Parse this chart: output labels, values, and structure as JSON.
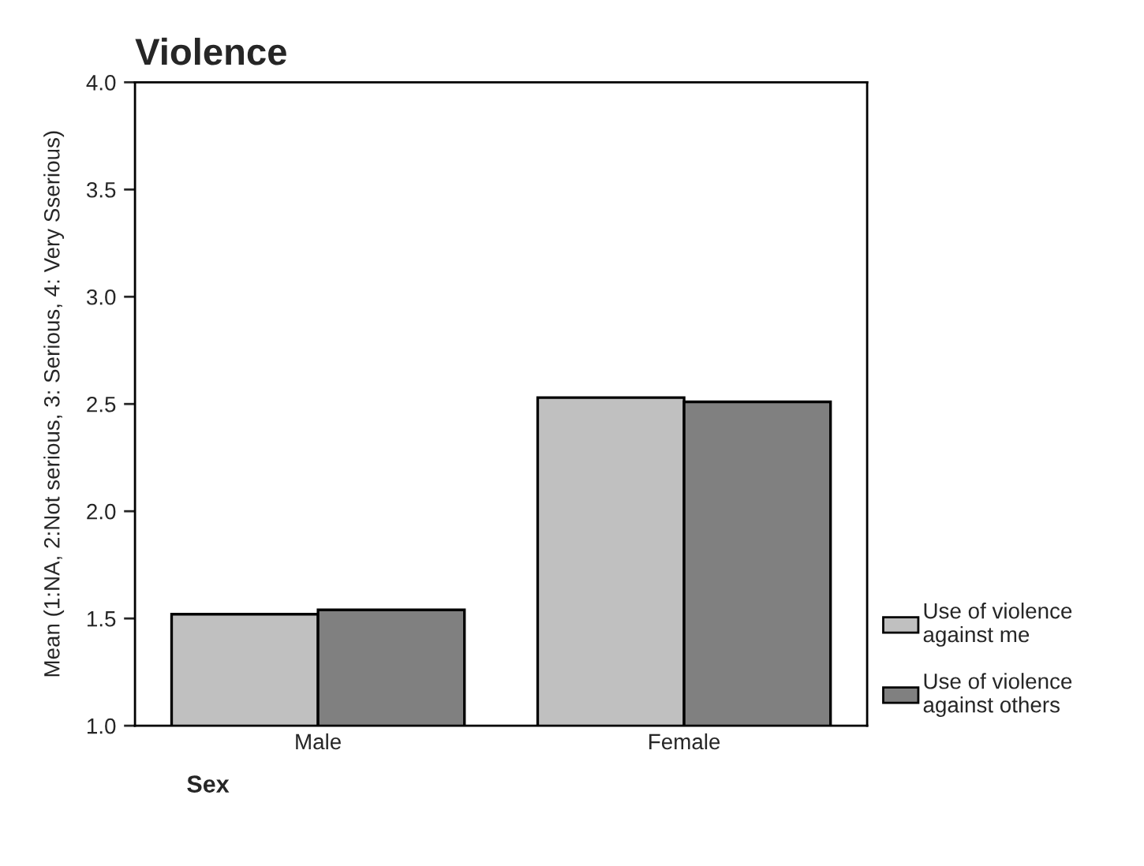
{
  "chart_data": {
    "type": "bar",
    "title": "Violence",
    "xlabel": "Sex",
    "ylabel": "Mean (1:NA, 2:Not serious, 3: Serious, 4: Very Sserious)",
    "categories": [
      "Male",
      "Female"
    ],
    "series": [
      {
        "name": "Use of violence against me",
        "color": "#c0c0c0",
        "values": [
          1.52,
          2.53
        ]
      },
      {
        "name": "Use of violence against others",
        "color": "#808080",
        "values": [
          1.54,
          2.51
        ]
      }
    ],
    "ylim": [
      1.0,
      4.0
    ],
    "yticks": [
      {
        "value": 1,
        "label": "1.0"
      },
      1.5,
      {
        "value": 2,
        "label": "2.0"
      },
      2.5,
      {
        "value": 3,
        "label": "3.0"
      },
      3.5,
      {
        "value": 4,
        "label": "4.0"
      }
    ],
    "grid": false,
    "legend": "right"
  }
}
